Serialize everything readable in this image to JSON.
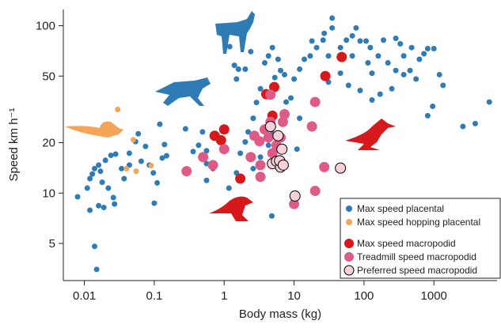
{
  "chart_data": {
    "type": "scatter",
    "xlabel": "Body mass (kg)",
    "ylabel": "Speed km h⁻¹",
    "xscale": "log",
    "yscale": "log",
    "xlim": [
      0.005,
      8000
    ],
    "ylim": [
      3,
      125
    ],
    "xticks": [
      0.01,
      0.1,
      1,
      10,
      100,
      1000
    ],
    "yticks": [
      5,
      10,
      20,
      50,
      100
    ],
    "legend": "lower right",
    "series": [
      {
        "name": "Max speed placental",
        "color": "#2e7bb5",
        "x": [
          0.008,
          0.011,
          0.012,
          0.013,
          0.014,
          0.016,
          0.017,
          0.018,
          0.016,
          0.012,
          0.014,
          0.015,
          0.02,
          0.024,
          0.028,
          0.022,
          0.026,
          0.019,
          0.027,
          0.034,
          0.037,
          0.044,
          0.044,
          0.054,
          0.059,
          0.075,
          0.065,
          0.085,
          0.097,
          0.11,
          0.13,
          0.15,
          0.14,
          0.1,
          0.12,
          0.28,
          0.36,
          0.43,
          0.56,
          0.69,
          0.56,
          0.49,
          0.56,
          1.17,
          1.5,
          1.7,
          2,
          2.2,
          2.6,
          2.9,
          3.3,
          2.6,
          3.3,
          4.3,
          4.9,
          3.8,
          4.3,
          4.9,
          5.3,
          5.9,
          6.4,
          7.3,
          4.8,
          1.5,
          1.6,
          1.4,
          1.2,
          2,
          2.4,
          12,
          14,
          17,
          21,
          18,
          26,
          27,
          35,
          35,
          46,
          68,
          77,
          107,
          123,
          160,
          220,
          285,
          330,
          370,
          455,
          555,
          620,
          815,
          1000,
          1200,
          1350,
          960,
          815,
          2600,
          3900,
          6200,
          170,
          130,
          88,
          60,
          250,
          130,
          46,
          31,
          31,
          56,
          88,
          68,
          190,
          285,
          480,
          720,
          370,
          114,
          11,
          12,
          7.7,
          9,
          10
        ],
        "values": [
          9.5,
          10.7,
          12.2,
          13,
          14,
          14.7,
          13.5,
          11.6,
          8.4,
          7.9,
          4.8,
          3.5,
          15.7,
          16.8,
          17.1,
          10.7,
          9.4,
          8.2,
          8.6,
          14,
          12.2,
          14.7,
          17.3,
          20.3,
          22.6,
          19,
          15.5,
          14.7,
          13.2,
          11.5,
          16.2,
          16.7,
          19.5,
          8.7,
          25.8,
          24.2,
          17.7,
          19.3,
          15,
          14,
          17.9,
          23.2,
          11.9,
          10.7,
          13.2,
          17.3,
          20.2,
          23.2,
          28,
          34.8,
          42,
          14,
          16.4,
          19.3,
          22.6,
          60,
          66,
          74,
          49,
          63,
          54,
          51,
          7.3,
          48,
          55,
          58,
          75,
          55,
          70,
          55,
          63,
          66,
          74,
          81,
          82,
          90,
          97,
          111,
          74,
          66,
          97,
          81,
          74,
          66,
          60,
          54,
          78,
          66,
          54,
          48,
          63,
          73,
          73,
          51,
          44,
          33,
          29,
          25,
          26,
          35,
          39,
          36,
          41,
          44,
          42,
          52,
          52,
          46,
          66,
          82,
          81,
          87,
          82,
          84,
          74,
          68,
          51,
          60,
          18.3,
          28,
          35,
          37,
          48
        ]
      },
      {
        "name": "Max speed hopping placental",
        "color": "#f5a55a",
        "x": [
          0.03,
          0.04,
          0.05,
          0.09,
          0.055
        ],
        "values": [
          31.6,
          14,
          20.8,
          14.6,
          13.5
        ]
      },
      {
        "name": "Max speed macropodid",
        "color": "#d7191c",
        "x": [
          0.73,
          0.9,
          1,
          1.7,
          4,
          5.2,
          4.9,
          28,
          48
        ],
        "values": [
          22,
          20.7,
          24,
          12.2,
          39,
          43,
          29,
          50,
          65
        ]
      },
      {
        "name": "Treadmill speed macropodid",
        "color": "#df5a87",
        "x": [
          0.29,
          0.5,
          0.69,
          1,
          2.4,
          2.7,
          3.2,
          3.3,
          3.8,
          4.3,
          4.6,
          4.9,
          5.6,
          6.4,
          6.4,
          6.9,
          7.3,
          3.3,
          4.6,
          10,
          18,
          20,
          20,
          27
        ],
        "values": [
          13.5,
          16.4,
          14.7,
          18.3,
          16.4,
          22,
          20.4,
          14.7,
          24,
          21.5,
          26.6,
          17.3,
          19.3,
          21.5,
          15.5,
          26.6,
          29.6,
          12.5,
          38.7,
          8.6,
          25,
          35,
          10.3,
          14.3
        ]
      },
      {
        "name": "Preferred speed macropodid",
        "color": "#f6d2d8",
        "edgecolor": "#000000",
        "x": [
          4.6,
          5.9,
          6.7,
          4.9,
          5.6,
          6.4,
          6.2,
          7,
          10.3,
          46
        ],
        "values": [
          25,
          22,
          18.3,
          15,
          15.5,
          14.3,
          15.6,
          14.7,
          9.6,
          14.1
        ]
      }
    ]
  }
}
